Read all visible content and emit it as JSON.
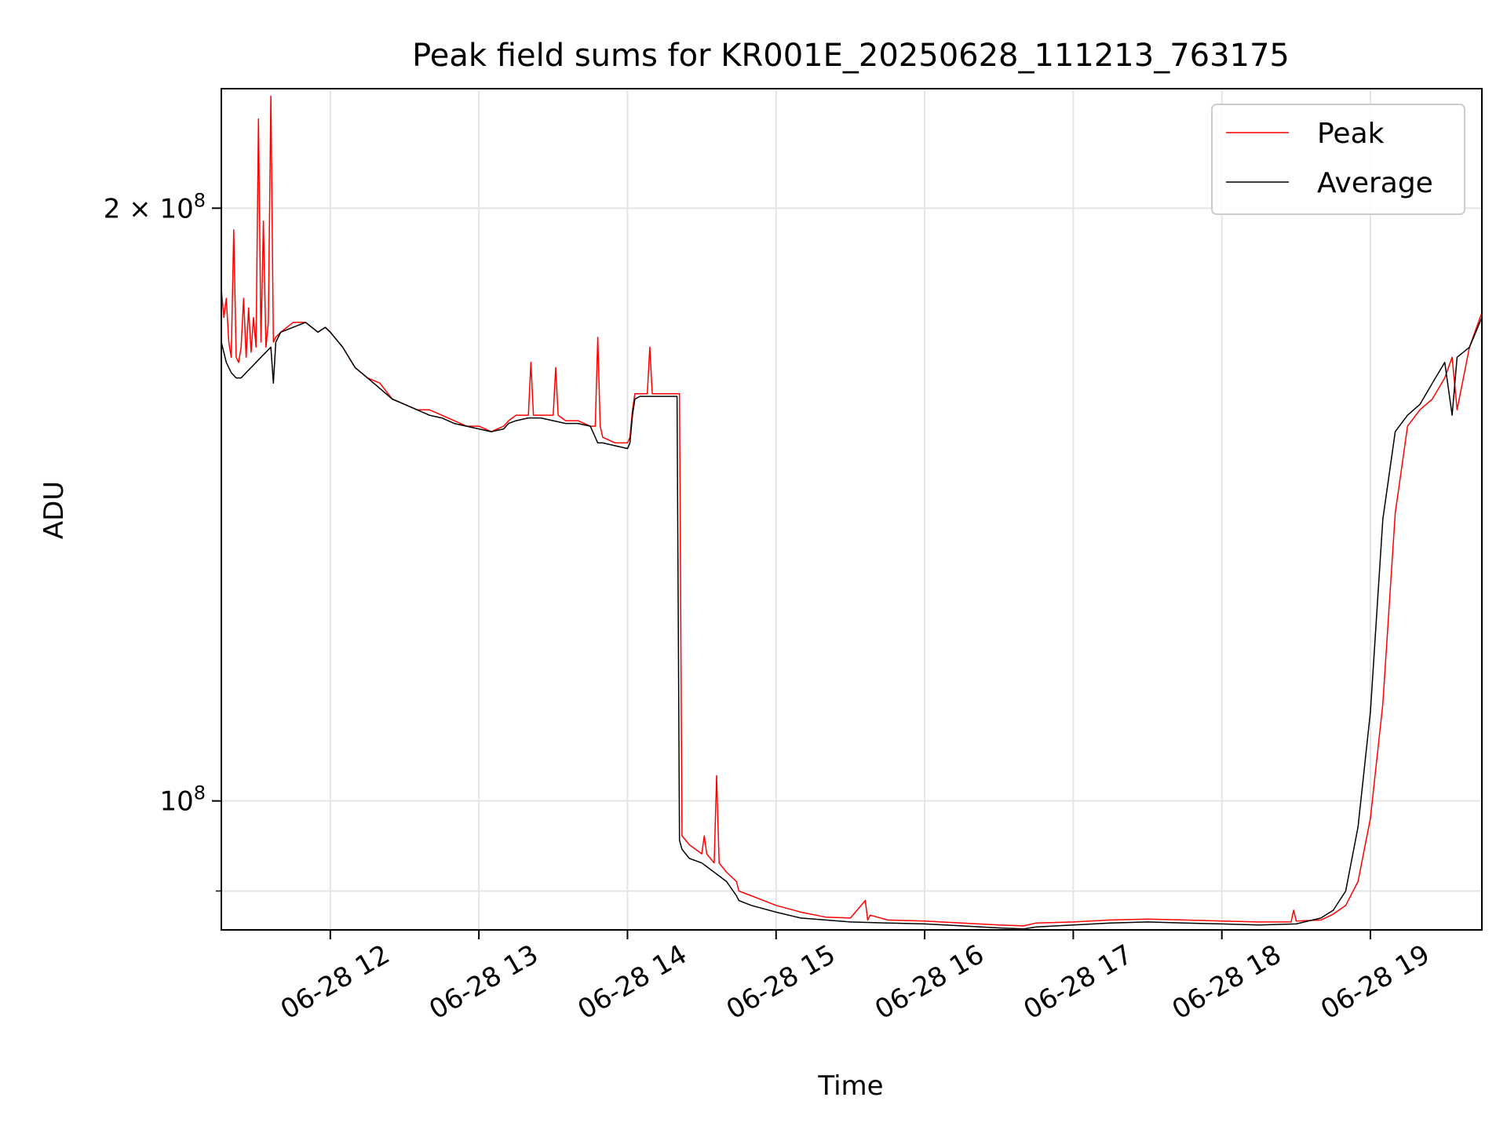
{
  "chart_data": {
    "type": "line",
    "title": "Peak field sums for KR001E_20250628_111213_763175",
    "xlabel": "Time",
    "ylabel": "ADU",
    "yscale": "log",
    "grid": true,
    "legend_position": "top-right",
    "xlim": [
      "2025-06-28T11:16:00",
      "2025-06-28T19:45:00"
    ],
    "ylim": [
      86000000,
      230000000
    ],
    "x_ticks": [
      {
        "value": "2025-06-28T12:00:00",
        "label": "06-28 12"
      },
      {
        "value": "2025-06-28T13:00:00",
        "label": "06-28 13"
      },
      {
        "value": "2025-06-28T14:00:00",
        "label": "06-28 14"
      },
      {
        "value": "2025-06-28T15:00:00",
        "label": "06-28 15"
      },
      {
        "value": "2025-06-28T16:00:00",
        "label": "06-28 16"
      },
      {
        "value": "2025-06-28T17:00:00",
        "label": "06-28 17"
      },
      {
        "value": "2025-06-28T18:00:00",
        "label": "06-28 18"
      },
      {
        "value": "2025-06-28T19:00:00",
        "label": "06-28 19"
      }
    ],
    "y_ticks": [
      {
        "value": 100000000,
        "base": "10",
        "exp": "8",
        "coef": ""
      },
      {
        "value": 200000000,
        "base": "10",
        "exp": "8",
        "coef": "2 × "
      }
    ],
    "y_minor_ticks": [
      90000000
    ],
    "series": [
      {
        "name": "Peak",
        "color": "#ff0000",
        "x": [
          "2025-06-28T11:16:00",
          "2025-06-28T11:17:00",
          "2025-06-28T11:18:00",
          "2025-06-28T11:19:00",
          "2025-06-28T11:20:00",
          "2025-06-28T11:21:00",
          "2025-06-28T11:22:00",
          "2025-06-28T11:23:00",
          "2025-06-28T11:24:00",
          "2025-06-28T11:25:00",
          "2025-06-28T11:26:00",
          "2025-06-28T11:27:00",
          "2025-06-28T11:28:00",
          "2025-06-28T11:29:00",
          "2025-06-28T11:30:00",
          "2025-06-28T11:31:00",
          "2025-06-28T11:32:00",
          "2025-06-28T11:33:00",
          "2025-06-28T11:34:00",
          "2025-06-28T11:35:00",
          "2025-06-28T11:36:00",
          "2025-06-28T11:37:00",
          "2025-06-28T11:38:00",
          "2025-06-28T11:40:00",
          "2025-06-28T11:45:00",
          "2025-06-28T11:50:00",
          "2025-06-28T11:55:00",
          "2025-06-28T11:58:00",
          "2025-06-28T12:00:00",
          "2025-06-28T12:05:00",
          "2025-06-28T12:10:00",
          "2025-06-28T12:15:00",
          "2025-06-28T12:20:00",
          "2025-06-28T12:25:00",
          "2025-06-28T12:30:00",
          "2025-06-28T12:35:00",
          "2025-06-28T12:40:00",
          "2025-06-28T12:45:00",
          "2025-06-28T12:50:00",
          "2025-06-28T12:55:00",
          "2025-06-28T13:00:00",
          "2025-06-28T13:05:00",
          "2025-06-28T13:10:00",
          "2025-06-28T13:12:00",
          "2025-06-28T13:15:00",
          "2025-06-28T13:20:00",
          "2025-06-28T13:21:00",
          "2025-06-28T13:22:00",
          "2025-06-28T13:25:00",
          "2025-06-28T13:30:00",
          "2025-06-28T13:31:00",
          "2025-06-28T13:32:00",
          "2025-06-28T13:35:00",
          "2025-06-28T13:40:00",
          "2025-06-28T13:45:00",
          "2025-06-28T13:47:00",
          "2025-06-28T13:48:00",
          "2025-06-28T13:49:00",
          "2025-06-28T13:50:00",
          "2025-06-28T13:55:00",
          "2025-06-28T14:00:00",
          "2025-06-28T14:01:00",
          "2025-06-28T14:02:00",
          "2025-06-28T14:03:00",
          "2025-06-28T14:05:00",
          "2025-06-28T14:08:00",
          "2025-06-28T14:09:00",
          "2025-06-28T14:10:00",
          "2025-06-28T14:15:00",
          "2025-06-28T14:20:00",
          "2025-06-28T14:21:00",
          "2025-06-28T14:22:00",
          "2025-06-28T14:25:00",
          "2025-06-28T14:30:00",
          "2025-06-28T14:31:00",
          "2025-06-28T14:32:00",
          "2025-06-28T14:35:00",
          "2025-06-28T14:36:00",
          "2025-06-28T14:37:00",
          "2025-06-28T14:40:00",
          "2025-06-28T14:44:00",
          "2025-06-28T14:45:00",
          "2025-06-28T14:50:00",
          "2025-06-28T15:00:00",
          "2025-06-28T15:10:00",
          "2025-06-28T15:20:00",
          "2025-06-28T15:30:00",
          "2025-06-28T15:36:00",
          "2025-06-28T15:37:00",
          "2025-06-28T15:38:00",
          "2025-06-28T15:45:00",
          "2025-06-28T16:00:00",
          "2025-06-28T16:15:00",
          "2025-06-28T16:30:00",
          "2025-06-28T16:40:00",
          "2025-06-28T16:45:00",
          "2025-06-28T17:00:00",
          "2025-06-28T17:15:00",
          "2025-06-28T17:30:00",
          "2025-06-28T17:45:00",
          "2025-06-28T18:00:00",
          "2025-06-28T18:15:00",
          "2025-06-28T18:28:00",
          "2025-06-28T18:29:00",
          "2025-06-28T18:30:00",
          "2025-06-28T18:40:00",
          "2025-06-28T18:45:00",
          "2025-06-28T18:50:00",
          "2025-06-28T18:55:00",
          "2025-06-28T19:00:00",
          "2025-06-28T19:05:00",
          "2025-06-28T19:10:00",
          "2025-06-28T19:15:00",
          "2025-06-28T19:20:00",
          "2025-06-28T19:25:00",
          "2025-06-28T19:30:00",
          "2025-06-28T19:33:00",
          "2025-06-28T19:35:00",
          "2025-06-28T19:40:00",
          "2025-06-28T19:45:00"
        ],
        "values": [
          182000000,
          176000000,
          180000000,
          171000000,
          168000000,
          195000000,
          168000000,
          167000000,
          170000000,
          180000000,
          168000000,
          178000000,
          169000000,
          176000000,
          170000000,
          222000000,
          171000000,
          197000000,
          170000000,
          175000000,
          228000000,
          171000000,
          172000000,
          173000000,
          175000000,
          175000000,
          173000000,
          174000000,
          173000000,
          170000000,
          166000000,
          164000000,
          163000000,
          160000000,
          159000000,
          158000000,
          158000000,
          157000000,
          156000000,
          155000000,
          155000000,
          154000000,
          155000000,
          156000000,
          157000000,
          157000000,
          167000000,
          157000000,
          157000000,
          157000000,
          166000000,
          157000000,
          156000000,
          156000000,
          155000000,
          155000000,
          172000000,
          155000000,
          153000000,
          152000000,
          152000000,
          153000000,
          158000000,
          161000000,
          161000000,
          161000000,
          170000000,
          161000000,
          161000000,
          161000000,
          161000000,
          96000000,
          95000000,
          94000000,
          96000000,
          94000000,
          93000000,
          103000000,
          93000000,
          92000000,
          91000000,
          90000000,
          89500000,
          88500000,
          87800000,
          87300000,
          87200000,
          89000000,
          87000000,
          87500000,
          87000000,
          86900000,
          86700000,
          86500000,
          86400000,
          86700000,
          86800000,
          87000000,
          87100000,
          87000000,
          86900000,
          86800000,
          86800000,
          88000000,
          86900000,
          87000000,
          87600000,
          88500000,
          91000000,
          98000000,
          112000000,
          140000000,
          155000000,
          158000000,
          160000000,
          164000000,
          168000000,
          158000000,
          170000000,
          177000000
        ]
      },
      {
        "name": "Average",
        "color": "#000000",
        "x": [
          "2025-06-28T11:16:00",
          "2025-06-28T11:18:00",
          "2025-06-28T11:20:00",
          "2025-06-28T11:22:00",
          "2025-06-28T11:24:00",
          "2025-06-28T11:26:00",
          "2025-06-28T11:28:00",
          "2025-06-28T11:30:00",
          "2025-06-28T11:32:00",
          "2025-06-28T11:34:00",
          "2025-06-28T11:36:00",
          "2025-06-28T11:37:00",
          "2025-06-28T11:38:00",
          "2025-06-28T11:40:00",
          "2025-06-28T11:45:00",
          "2025-06-28T11:50:00",
          "2025-06-28T11:55:00",
          "2025-06-28T11:58:00",
          "2025-06-28T12:00:00",
          "2025-06-28T12:05:00",
          "2025-06-28T12:10:00",
          "2025-06-28T12:15:00",
          "2025-06-28T12:20:00",
          "2025-06-28T12:25:00",
          "2025-06-28T12:30:00",
          "2025-06-28T12:35:00",
          "2025-06-28T12:40:00",
          "2025-06-28T12:45:00",
          "2025-06-28T12:50:00",
          "2025-06-28T12:55:00",
          "2025-06-28T13:00:00",
          "2025-06-28T13:05:00",
          "2025-06-28T13:10:00",
          "2025-06-28T13:12:00",
          "2025-06-28T13:15:00",
          "2025-06-28T13:20:00",
          "2025-06-28T13:25:00",
          "2025-06-28T13:30:00",
          "2025-06-28T13:35:00",
          "2025-06-28T13:40:00",
          "2025-06-28T13:45:00",
          "2025-06-28T13:48:00",
          "2025-06-28T13:50:00",
          "2025-06-28T13:55:00",
          "2025-06-28T14:00:00",
          "2025-06-28T14:01:00",
          "2025-06-28T14:02:00",
          "2025-06-28T14:03:00",
          "2025-06-28T14:05:00",
          "2025-06-28T14:10:00",
          "2025-06-28T14:15:00",
          "2025-06-28T14:20:00",
          "2025-06-28T14:21:00",
          "2025-06-28T14:22:00",
          "2025-06-28T14:25:00",
          "2025-06-28T14:30:00",
          "2025-06-28T14:35:00",
          "2025-06-28T14:40:00",
          "2025-06-28T14:44:00",
          "2025-06-28T14:45:00",
          "2025-06-28T14:50:00",
          "2025-06-28T15:00:00",
          "2025-06-28T15:10:00",
          "2025-06-28T15:20:00",
          "2025-06-28T15:30:00",
          "2025-06-28T15:45:00",
          "2025-06-28T16:00:00",
          "2025-06-28T16:15:00",
          "2025-06-28T16:30:00",
          "2025-06-28T16:40:00",
          "2025-06-28T16:45:00",
          "2025-06-28T17:00:00",
          "2025-06-28T17:15:00",
          "2025-06-28T17:30:00",
          "2025-06-28T17:45:00",
          "2025-06-28T18:00:00",
          "2025-06-28T18:15:00",
          "2025-06-28T18:30:00",
          "2025-06-28T18:40:00",
          "2025-06-28T18:45:00",
          "2025-06-28T18:50:00",
          "2025-06-28T18:55:00",
          "2025-06-28T19:00:00",
          "2025-06-28T19:05:00",
          "2025-06-28T19:10:00",
          "2025-06-28T19:15:00",
          "2025-06-28T19:20:00",
          "2025-06-28T19:25:00",
          "2025-06-28T19:30:00",
          "2025-06-28T19:33:00",
          "2025-06-28T19:35:00",
          "2025-06-28T19:40:00",
          "2025-06-28T19:45:00"
        ],
        "values": [
          171000000,
          167000000,
          165000000,
          164000000,
          164000000,
          165000000,
          166000000,
          167000000,
          168000000,
          169000000,
          170000000,
          163000000,
          171000000,
          173000000,
          174000000,
          175000000,
          173000000,
          174000000,
          173000000,
          170000000,
          166000000,
          164000000,
          162000000,
          160000000,
          159000000,
          158000000,
          157000000,
          156500000,
          155500000,
          155000000,
          154500000,
          154000000,
          154500000,
          155500000,
          156000000,
          156500000,
          156500000,
          156000000,
          155500000,
          155500000,
          155000000,
          152000000,
          152000000,
          151500000,
          151000000,
          152000000,
          157000000,
          160000000,
          160500000,
          160500000,
          160500000,
          160500000,
          95500000,
          94500000,
          93500000,
          93000000,
          92000000,
          91000000,
          89500000,
          89000000,
          88500000,
          87800000,
          87200000,
          87000000,
          86800000,
          86700000,
          86600000,
          86400000,
          86200000,
          86100000,
          86300000,
          86500000,
          86700000,
          86800000,
          86700000,
          86600000,
          86500000,
          86600000,
          87200000,
          88000000,
          90000000,
          97000000,
          111000000,
          139000000,
          154000000,
          157000000,
          159000000,
          163000000,
          167000000,
          157000000,
          168000000,
          170000000,
          176000000
        ]
      }
    ]
  }
}
